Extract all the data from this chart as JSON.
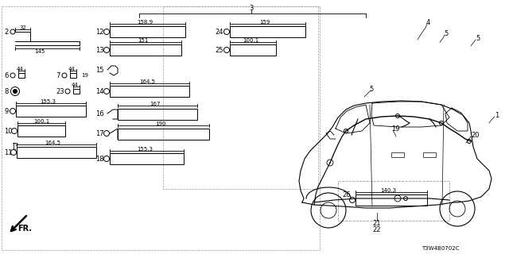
{
  "bg_color": "#ffffff",
  "diagram_code": "T3W4B0702C",
  "fig_w": 6.4,
  "fig_h": 3.2,
  "dpi": 100
}
